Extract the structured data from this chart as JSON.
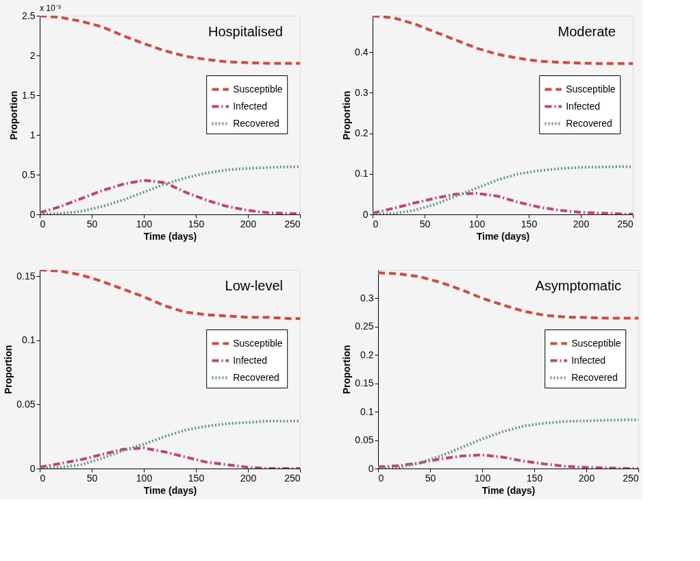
{
  "chart_data": [
    {
      "type": "line",
      "title": "Hospitalised",
      "xlabel": "Time (days)",
      "ylabel": "Proportion",
      "annotations": [
        "x 10⁻³"
      ],
      "xlim": [
        0,
        250
      ],
      "xticks": [
        0,
        50,
        100,
        150,
        200,
        250
      ],
      "ylim": [
        0,
        2.5
      ],
      "yticks": [
        0,
        0.5,
        1,
        1.5,
        2,
        2.5
      ],
      "legend": "right",
      "x": [
        0,
        20,
        40,
        60,
        80,
        100,
        120,
        140,
        160,
        180,
        200,
        220,
        240,
        250
      ],
      "series": [
        {
          "name": "Susceptible",
          "color": "#d9473a",
          "line_style": "dashed",
          "values": [
            2.5,
            2.48,
            2.43,
            2.36,
            2.25,
            2.15,
            2.06,
            1.99,
            1.95,
            1.92,
            1.91,
            1.9,
            1.9,
            1.9
          ]
        },
        {
          "name": "Infected",
          "color": "#c8416e",
          "line_style": "dashdot",
          "values": [
            0.02,
            0.1,
            0.2,
            0.3,
            0.38,
            0.43,
            0.4,
            0.28,
            0.18,
            0.1,
            0.05,
            0.02,
            0.01,
            0.01
          ]
        },
        {
          "name": "Recovered",
          "color": "#5a9a6a",
          "line_style": "dotted",
          "values": [
            0,
            0.01,
            0.04,
            0.1,
            0.18,
            0.28,
            0.38,
            0.46,
            0.52,
            0.56,
            0.58,
            0.59,
            0.6,
            0.6
          ]
        }
      ]
    },
    {
      "type": "line",
      "title": "Moderate",
      "xlabel": "Time (days)",
      "ylabel": "Proportion",
      "xlim": [
        0,
        250
      ],
      "xticks": [
        0,
        50,
        100,
        150,
        200,
        250
      ],
      "ylim": [
        0,
        0.49
      ],
      "yticks": [
        0,
        0.1,
        0.2,
        0.3,
        0.4
      ],
      "legend": "right",
      "x": [
        0,
        20,
        40,
        60,
        80,
        100,
        120,
        140,
        160,
        180,
        200,
        220,
        240,
        250
      ],
      "series": [
        {
          "name": "Susceptible",
          "color": "#d9473a",
          "line_style": "dashed",
          "values": [
            0.49,
            0.485,
            0.47,
            0.45,
            0.43,
            0.41,
            0.395,
            0.385,
            0.378,
            0.375,
            0.373,
            0.372,
            0.372,
            0.372
          ]
        },
        {
          "name": "Infected",
          "color": "#c8416e",
          "line_style": "dashdot",
          "values": [
            0.003,
            0.015,
            0.028,
            0.04,
            0.05,
            0.052,
            0.045,
            0.03,
            0.018,
            0.01,
            0.005,
            0.003,
            0.001,
            0.001
          ]
        },
        {
          "name": "Recovered",
          "color": "#5a9a6a",
          "line_style": "dotted",
          "values": [
            0,
            0.002,
            0.01,
            0.025,
            0.045,
            0.065,
            0.085,
            0.1,
            0.108,
            0.113,
            0.116,
            0.117,
            0.118,
            0.117
          ]
        }
      ]
    },
    {
      "type": "line",
      "title": "Low-level",
      "xlabel": "Time (days)",
      "ylabel": "Proportion",
      "xlim": [
        0,
        250
      ],
      "xticks": [
        0,
        50,
        100,
        150,
        200,
        250
      ],
      "ylim": [
        0,
        0.155
      ],
      "yticks": [
        0,
        0.05,
        0.1,
        0.15
      ],
      "legend": "right",
      "x": [
        0,
        20,
        40,
        60,
        80,
        100,
        120,
        140,
        160,
        180,
        200,
        220,
        240,
        250
      ],
      "series": [
        {
          "name": "Susceptible",
          "color": "#d9473a",
          "line_style": "dashed",
          "values": [
            0.155,
            0.154,
            0.151,
            0.146,
            0.14,
            0.134,
            0.127,
            0.122,
            0.12,
            0.119,
            0.118,
            0.118,
            0.117,
            0.117
          ]
        },
        {
          "name": "Infected",
          "color": "#c8416e",
          "line_style": "dashdot",
          "values": [
            0.001,
            0.004,
            0.007,
            0.011,
            0.015,
            0.016,
            0.013,
            0.009,
            0.005,
            0.003,
            0.001,
            0,
            0,
            0
          ]
        },
        {
          "name": "Recovered",
          "color": "#5a9a6a",
          "line_style": "dotted",
          "values": [
            0,
            0.001,
            0.003,
            0.008,
            0.014,
            0.019,
            0.025,
            0.03,
            0.033,
            0.035,
            0.036,
            0.037,
            0.037,
            0.037
          ]
        }
      ]
    },
    {
      "type": "line",
      "title": "Asymptomatic",
      "xlabel": "Time (days)",
      "ylabel": "Proportion",
      "xlim": [
        0,
        250
      ],
      "xticks": [
        0,
        50,
        100,
        150,
        200,
        250
      ],
      "ylim": [
        0,
        0.35
      ],
      "yticks": [
        0,
        0.05,
        0.1,
        0.15,
        0.2,
        0.25,
        0.3
      ],
      "legend": "right",
      "x": [
        0,
        20,
        40,
        60,
        80,
        100,
        120,
        140,
        160,
        180,
        200,
        220,
        240,
        250
      ],
      "series": [
        {
          "name": "Susceptible",
          "color": "#d9473a",
          "line_style": "dashed",
          "values": [
            0.345,
            0.343,
            0.338,
            0.328,
            0.315,
            0.3,
            0.288,
            0.277,
            0.27,
            0.267,
            0.266,
            0.265,
            0.265,
            0.265
          ]
        },
        {
          "name": "Infected",
          "color": "#c8416e",
          "line_style": "dashdot",
          "values": [
            0.003,
            0.005,
            0.01,
            0.017,
            0.022,
            0.024,
            0.02,
            0.013,
            0.008,
            0.004,
            0.002,
            0.001,
            0,
            0
          ]
        },
        {
          "name": "Recovered",
          "color": "#5a9a6a",
          "line_style": "dotted",
          "values": [
            0,
            0.002,
            0.01,
            0.022,
            0.037,
            0.052,
            0.065,
            0.075,
            0.08,
            0.083,
            0.084,
            0.085,
            0.086,
            0.086
          ]
        }
      ]
    }
  ]
}
